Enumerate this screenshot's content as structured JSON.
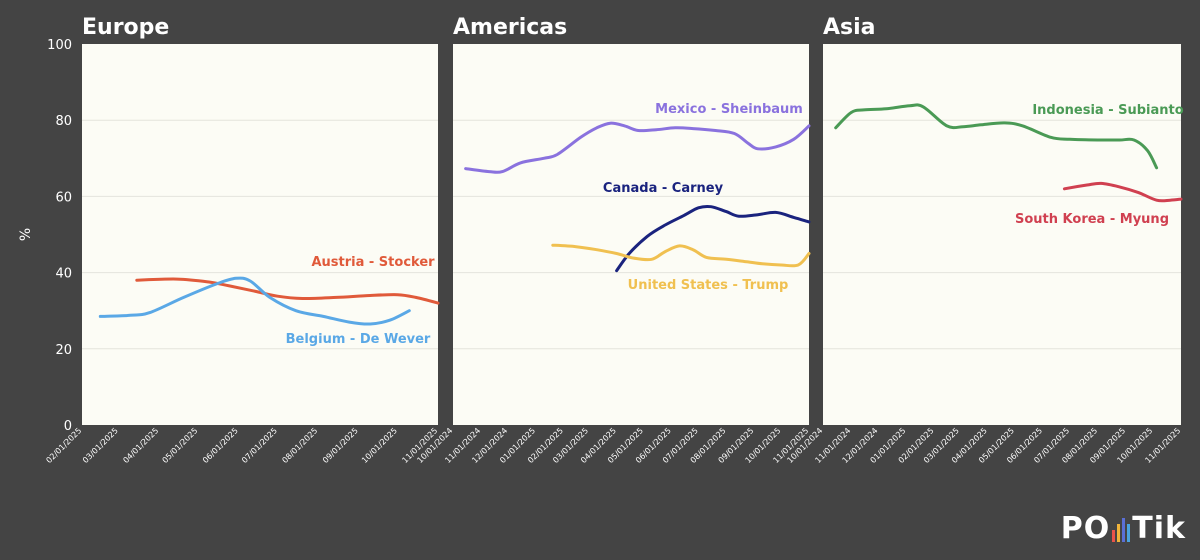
{
  "logo": {
    "left": "PO",
    "right": "Tik",
    "bar_colors": [
      "#e8534a",
      "#f0b43a",
      "#5a6fd6",
      "#4aa3df"
    ]
  },
  "chart_data": [
    {
      "type": "line",
      "title": "Europe",
      "ylabel": "%",
      "ylim": [
        0,
        100
      ],
      "yticks": [
        0,
        20,
        40,
        60,
        80,
        100
      ],
      "xlim": [
        "2025-02-01",
        "2025-11-01"
      ],
      "xticks": [
        "02/01/2025",
        "03/01/2025",
        "04/01/2025",
        "05/01/2025",
        "06/01/2025",
        "07/01/2025",
        "08/01/2025",
        "09/01/2025",
        "10/01/2025",
        "11/01/2025"
      ],
      "series": [
        {
          "name": "Austria - Stocker",
          "color": "#e05a3a",
          "points": [
            [
              "2025-03-15",
              38
            ],
            [
              "2025-04-15",
              38.3
            ],
            [
              "2025-05-10",
              37.5
            ],
            [
              "2025-05-25",
              36.5
            ],
            [
              "2025-06-15",
              35
            ],
            [
              "2025-07-01",
              33.8
            ],
            [
              "2025-07-20",
              33.2
            ],
            [
              "2025-08-15",
              33.5
            ],
            [
              "2025-09-10",
              34
            ],
            [
              "2025-10-01",
              34.2
            ],
            [
              "2025-10-15",
              33.5
            ],
            [
              "2025-11-01",
              32
            ]
          ]
        },
        {
          "name": "Belgium - De Wever",
          "color": "#5aa8e6",
          "points": [
            [
              "2025-02-15",
              28.5
            ],
            [
              "2025-03-10",
              28.8
            ],
            [
              "2025-03-25",
              29.5
            ],
            [
              "2025-04-20",
              33.5
            ],
            [
              "2025-05-15",
              37
            ],
            [
              "2025-05-30",
              38.5
            ],
            [
              "2025-06-10",
              37.8
            ],
            [
              "2025-06-25",
              33.5
            ],
            [
              "2025-07-15",
              30
            ],
            [
              "2025-08-05",
              28.5
            ],
            [
              "2025-08-25",
              27
            ],
            [
              "2025-09-10",
              26.5
            ],
            [
              "2025-09-25",
              27.5
            ],
            [
              "2025-10-10",
              30
            ]
          ]
        }
      ]
    },
    {
      "type": "line",
      "title": "Americas",
      "ylim": [
        0,
        100
      ],
      "xlim": [
        "2024-10-01",
        "2025-11-01"
      ],
      "xticks": [
        "10/01/2024",
        "11/01/2024",
        "12/01/2024",
        "01/01/2025",
        "02/01/2025",
        "03/01/2025",
        "04/01/2025",
        "05/01/2025",
        "06/01/2025",
        "07/01/2025",
        "08/01/2025",
        "09/01/2025",
        "10/01/2025",
        "11/01/2025"
      ],
      "series": [
        {
          "name": "Mexico - Sheinbaum",
          "color": "#8a72de",
          "points": [
            [
              "2024-10-15",
              67.3
            ],
            [
              "2024-11-10",
              66.5
            ],
            [
              "2024-11-25",
              66.5
            ],
            [
              "2024-12-15",
              68.8
            ],
            [
              "2025-01-10",
              70
            ],
            [
              "2025-01-25",
              71
            ],
            [
              "2025-02-20",
              75.5
            ],
            [
              "2025-03-10",
              78
            ],
            [
              "2025-03-25",
              79.2
            ],
            [
              "2025-04-10",
              78.5
            ],
            [
              "2025-04-25",
              77.3
            ],
            [
              "2025-05-15",
              77.5
            ],
            [
              "2025-06-05",
              78
            ],
            [
              "2025-06-25",
              77.8
            ],
            [
              "2025-07-20",
              77.3
            ],
            [
              "2025-08-10",
              76.5
            ],
            [
              "2025-08-25",
              74
            ],
            [
              "2025-09-05",
              72.5
            ],
            [
              "2025-09-25",
              73
            ],
            [
              "2025-10-15",
              75
            ],
            [
              "2025-11-01",
              78.5
            ]
          ]
        },
        {
          "name": "Canada - Carney",
          "color": "#1a237e",
          "points": [
            [
              "2025-04-01",
              40.5
            ],
            [
              "2025-04-15",
              45
            ],
            [
              "2025-05-05",
              49.5
            ],
            [
              "2025-05-25",
              52.5
            ],
            [
              "2025-06-15",
              55
            ],
            [
              "2025-07-01",
              57
            ],
            [
              "2025-07-15",
              57.3
            ],
            [
              "2025-08-01",
              56
            ],
            [
              "2025-08-15",
              54.8
            ],
            [
              "2025-09-05",
              55.2
            ],
            [
              "2025-09-25",
              55.8
            ],
            [
              "2025-10-15",
              54.5
            ],
            [
              "2025-11-01",
              53.3
            ]
          ]
        },
        {
          "name": "United States - Trump",
          "color": "#f0c050",
          "points": [
            [
              "2025-01-20",
              47.2
            ],
            [
              "2025-02-15",
              46.8
            ],
            [
              "2025-03-10",
              46
            ],
            [
              "2025-04-01",
              45
            ],
            [
              "2025-04-20",
              43.8
            ],
            [
              "2025-05-10",
              43.5
            ],
            [
              "2025-05-25",
              45.5
            ],
            [
              "2025-06-10",
              47
            ],
            [
              "2025-06-25",
              46
            ],
            [
              "2025-07-10",
              44
            ],
            [
              "2025-08-01",
              43.5
            ],
            [
              "2025-08-25",
              42.8
            ],
            [
              "2025-09-10",
              42.3
            ],
            [
              "2025-10-01",
              42
            ],
            [
              "2025-10-20",
              42
            ],
            [
              "2025-11-01",
              45
            ]
          ]
        }
      ]
    },
    {
      "type": "line",
      "title": "Asia",
      "ylim": [
        0,
        100
      ],
      "xlim": [
        "2024-10-01",
        "2025-11-01"
      ],
      "xticks": [
        "10/01/2024",
        "11/01/2024",
        "12/01/2024",
        "01/01/2025",
        "02/01/2025",
        "03/01/2025",
        "04/01/2025",
        "05/01/2025",
        "06/01/2025",
        "07/01/2025",
        "08/01/2025",
        "09/01/2025",
        "10/01/2025",
        "11/01/2025"
      ],
      "series": [
        {
          "name": "Indonesia - Subianto",
          "color": "#4a9a55",
          "points": [
            [
              "2024-10-15",
              78
            ],
            [
              "2024-11-01",
              82
            ],
            [
              "2024-11-15",
              82.7
            ],
            [
              "2024-12-10",
              83
            ],
            [
              "2025-01-05",
              83.8
            ],
            [
              "2025-01-20",
              83.5
            ],
            [
              "2025-02-15",
              78.5
            ],
            [
              "2025-03-05",
              78.3
            ],
            [
              "2025-03-25",
              78.8
            ],
            [
              "2025-04-20",
              79.3
            ],
            [
              "2025-05-10",
              78.5
            ],
            [
              "2025-06-10",
              75.5
            ],
            [
              "2025-07-01",
              75
            ],
            [
              "2025-08-01",
              74.8
            ],
            [
              "2025-08-25",
              74.8
            ],
            [
              "2025-09-10",
              74.8
            ],
            [
              "2025-09-25",
              72
            ],
            [
              "2025-10-05",
              67.5
            ]
          ]
        },
        {
          "name": "South Korea - Myung",
          "color": "#d04050",
          "points": [
            [
              "2025-06-25",
              62
            ],
            [
              "2025-07-20",
              63
            ],
            [
              "2025-08-05",
              63.4
            ],
            [
              "2025-08-25",
              62.5
            ],
            [
              "2025-09-15",
              61
            ],
            [
              "2025-10-05",
              59
            ],
            [
              "2025-10-20",
              59
            ],
            [
              "2025-11-01",
              59.3
            ]
          ]
        }
      ]
    }
  ]
}
